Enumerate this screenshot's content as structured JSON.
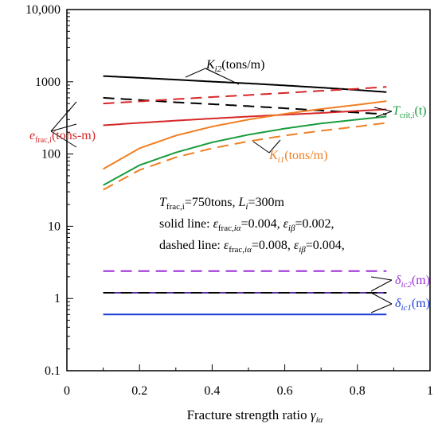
{
  "chart_data": {
    "type": "line",
    "xlabel": "Fracture strength ratio",
    "xlabel_symbol": "γ",
    "xlabel_symbol_sub": "iα",
    "xlim": [
      0,
      1
    ],
    "ylim": [
      0.1,
      10000
    ],
    "yscale": "log",
    "grid": false,
    "legend": "none",
    "x_ticks": [
      "0",
      "0.2",
      "0.4",
      "0.6",
      "0.8",
      "1"
    ],
    "y_ticks": [
      "0.1",
      "1",
      "10",
      "100",
      "1000",
      "10,000"
    ],
    "x": [
      0.1,
      0.2,
      0.3,
      0.4,
      0.5,
      0.6,
      0.7,
      0.8,
      0.88
    ],
    "series": [
      {
        "key": "Ki2",
        "style": "solid",
        "color": "#000000",
        "values": [
          1200,
          1135,
          1070,
          1005,
          950,
          890,
          830,
          770,
          720
        ]
      },
      {
        "key": "Ki2",
        "style": "dashed",
        "color": "#000000",
        "values": [
          600,
          560,
          520,
          490,
          460,
          430,
          400,
          375,
          355
        ]
      },
      {
        "key": "efrac",
        "style": "solid",
        "color": "#d62728",
        "values": [
          250,
          270,
          290,
          310,
          330,
          350,
          370,
          395,
          415
        ]
      },
      {
        "key": "efrac",
        "style": "dashed",
        "color": "#d62728",
        "values": [
          500,
          535,
          575,
          615,
          655,
          700,
          750,
          800,
          850
        ]
      },
      {
        "key": "Tcrit",
        "style": "solid",
        "color": "#1a9c3e",
        "values": [
          37,
          70,
          105,
          145,
          185,
          225,
          265,
          300,
          330
        ]
      },
      {
        "key": "Ki1",
        "style": "solid",
        "color": "#f07f24",
        "values": [
          62,
          120,
          180,
          240,
          300,
          360,
          420,
          480,
          540
        ]
      },
      {
        "key": "Ki1",
        "style": "dashed",
        "color": "#f07f24",
        "values": [
          32,
          60,
          90,
          120,
          150,
          180,
          210,
          240,
          270
        ]
      },
      {
        "key": "deltaIc2",
        "style": "dashed",
        "color": "#9b30d9",
        "values": [
          2.4,
          2.4,
          2.4,
          2.4,
          2.4,
          2.4,
          2.4,
          2.4,
          2.4
        ]
      },
      {
        "key": "deltaIc2",
        "style": "solid",
        "color": "#5a2ea0",
        "values": [
          1.2,
          1.2,
          1.2,
          1.2,
          1.2,
          1.2,
          1.2,
          1.2,
          1.2
        ]
      },
      {
        "key": "deltaIc1",
        "style": "dashed",
        "color": "#000000",
        "values": [
          1.2,
          1.2,
          1.2,
          1.2,
          1.2,
          1.2,
          1.2,
          1.2,
          1.2
        ]
      },
      {
        "key": "deltaIc1",
        "style": "solid",
        "color": "#1f3fd6",
        "values": [
          0.6,
          0.6,
          0.6,
          0.6,
          0.6,
          0.6,
          0.6,
          0.6,
          0.6
        ]
      }
    ],
    "labels": {
      "Ki2": {
        "main": "K",
        "sub": "i2",
        "unit": "(tons/m)",
        "color": "#000000"
      },
      "efrac": {
        "main": "e",
        "sub": "frac,i",
        "unit": "(tons-m)",
        "color": "#d62728"
      },
      "Tcrit": {
        "main": "T",
        "sub": "crit,i",
        "unit": "(t)",
        "color": "#1a9c3e"
      },
      "Ki1": {
        "main": "K",
        "sub": "i1",
        "unit": "(tons/m)",
        "color": "#f07f24"
      },
      "deltaIc2": {
        "main": "δ",
        "sub": "ic2",
        "unit": "(m)",
        "color": "#9b30d9"
      },
      "deltaIc1": {
        "main": "δ",
        "sub": "ic1",
        "unit": "(m)",
        "color": "#1f3fd6"
      }
    },
    "annotations": {
      "line1": {
        "T": "T",
        "T_sub": "frac,i",
        "T_val": "=750tons, ",
        "L": "L",
        "L_sub": "i",
        "L_val": "=300m"
      },
      "line2": {
        "prefix": "solid line: ",
        "e1": "ε",
        "e1_sub": "frac,",
        "e1_sub_it": "iα",
        "v1": "=0.004, ",
        "e2": "ε",
        "e2_sub_it": "iβ",
        "v2": "=0.002,"
      },
      "line3": {
        "prefix": "dashed line: ",
        "e1": "ε",
        "e1_sub": "frac,",
        "e1_sub_it": "iα",
        "v1": "=0.008, ",
        "e2": "ε",
        "e2_sub_it": "iβ",
        "v2": "=0.004,"
      }
    }
  }
}
